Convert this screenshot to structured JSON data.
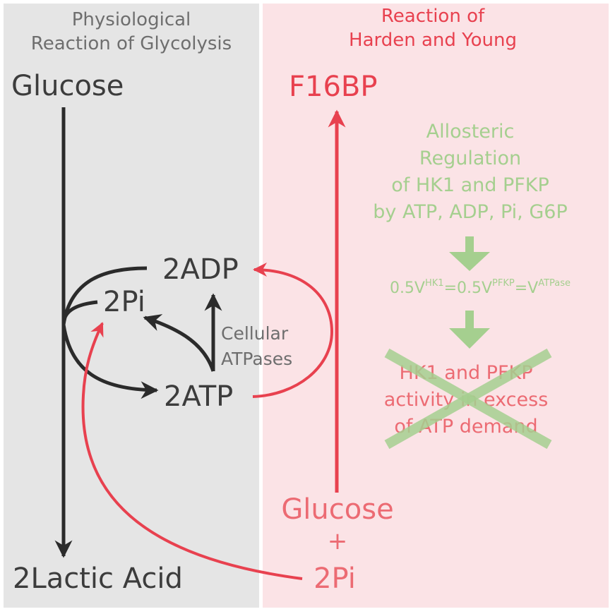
{
  "left": {
    "header": [
      "Physiological",
      "Reaction of Glycolysis"
    ],
    "glucose": "Glucose",
    "lactic": "2Lactic Acid",
    "adp": "2ADP",
    "pi": "2Pi",
    "atp": "2ATP",
    "atpases": [
      "Cellular",
      "ATPases"
    ]
  },
  "right": {
    "header": [
      "Reaction of",
      "Harden and Young"
    ],
    "f16bp": "F16BP",
    "reactant_glucose": "Glucose",
    "plus": "+",
    "reactant_pi": "2Pi",
    "regulation": [
      "Allosteric",
      "Regulation",
      "of HK1 and PFKP",
      "by ATP, ADP, Pi, G6P"
    ],
    "equation": {
      "p1": "0.5V",
      "s1": "HK1",
      "p2": "=0.5V",
      "s2": "PFKP",
      "p3": "=V",
      "s3": "ATPase"
    },
    "excess": [
      "HK1 and PFKP",
      "activity in excess",
      "of ATP demand"
    ]
  },
  "colors": {
    "left_bg": "#e5e5e5",
    "right_bg": "#fbe3e6",
    "black_arrow": "#2b2b2b",
    "red_arrow": "#e8414f",
    "green": "#a5cf8f"
  }
}
